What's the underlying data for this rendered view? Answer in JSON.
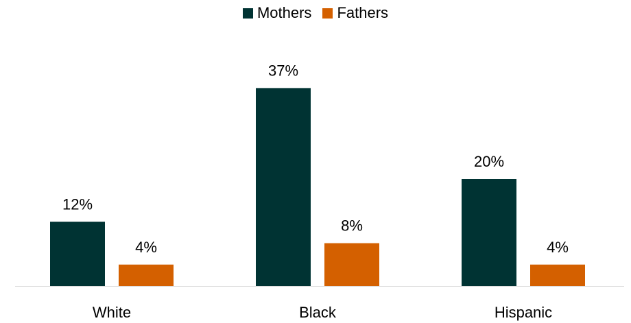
{
  "chart_data": {
    "type": "bar",
    "categories": [
      "White",
      "Black",
      "Hispanic"
    ],
    "series": [
      {
        "name": "Mothers",
        "values": [
          12,
          37,
          20
        ],
        "labels": [
          "12%",
          "37%",
          "20%"
        ],
        "color": "#003333"
      },
      {
        "name": "Fathers",
        "values": [
          4,
          8,
          4
        ],
        "labels": [
          "4%",
          "8%",
          "4%"
        ],
        "color": "#D46000"
      }
    ],
    "title": "",
    "xlabel": "",
    "ylabel": "",
    "ylim": [
      0,
      40
    ],
    "grid": false,
    "legend_position": "top-center",
    "axis_color": "#d9d9d9"
  }
}
